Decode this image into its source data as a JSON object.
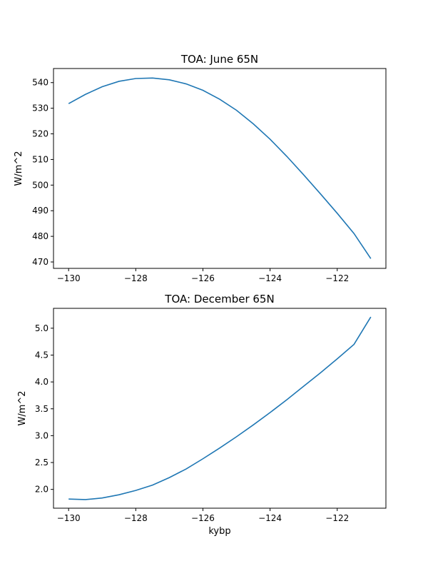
{
  "chart_data": [
    {
      "type": "line",
      "title": "TOA: June 65N",
      "xlabel": "",
      "ylabel": "W/m^2",
      "xlim": [
        -130.45,
        -120.55
      ],
      "ylim": [
        467.5,
        545.5
      ],
      "xticks": [
        -130,
        -128,
        -126,
        -124,
        -122
      ],
      "xtick_labels": [
        "−130",
        "−128",
        "−126",
        "−124",
        "−122"
      ],
      "yticks": [
        470,
        480,
        490,
        500,
        510,
        520,
        530,
        540
      ],
      "ytick_labels": [
        "470",
        "480",
        "490",
        "500",
        "510",
        "520",
        "530",
        "540"
      ],
      "grid": false,
      "series": [
        {
          "color": "#1f77b4",
          "x": [
            -130,
            -129.5,
            -129,
            -128.5,
            -128,
            -127.5,
            -127,
            -126.5,
            -126,
            -125.5,
            -125,
            -124.5,
            -124,
            -123.5,
            -123,
            -122.5,
            -122,
            -121.5,
            -121
          ],
          "y": [
            531.8,
            535.4,
            538.4,
            540.5,
            541.6,
            541.8,
            541.1,
            539.5,
            537.0,
            533.5,
            529.2,
            523.9,
            517.9,
            511.2,
            504.0,
            496.6,
            489.0,
            481.1,
            471.3
          ]
        }
      ]
    },
    {
      "type": "line",
      "title": "TOA: December 65N",
      "xlabel": "kybp",
      "ylabel": "W/m^2",
      "xlim": [
        -130.45,
        -120.55
      ],
      "ylim": [
        1.65,
        5.37
      ],
      "xticks": [
        -130,
        -128,
        -126,
        -124,
        -122
      ],
      "xtick_labels": [
        "−130",
        "−128",
        "−126",
        "−124",
        "−122"
      ],
      "yticks": [
        2.0,
        2.5,
        3.0,
        3.5,
        4.0,
        4.5,
        5.0
      ],
      "ytick_labels": [
        "2.0",
        "2.5",
        "3.0",
        "3.5",
        "4.0",
        "4.5",
        "5.0"
      ],
      "grid": false,
      "series": [
        {
          "color": "#1f77b4",
          "x": [
            -130,
            -129.5,
            -129,
            -128.5,
            -128,
            -127.5,
            -127,
            -126.5,
            -126,
            -125.5,
            -125,
            -124.5,
            -124,
            -123.5,
            -123,
            -122.5,
            -122,
            -121.5,
            -121
          ],
          "y": [
            1.82,
            1.81,
            1.84,
            1.9,
            1.98,
            2.08,
            2.22,
            2.38,
            2.57,
            2.77,
            2.98,
            3.2,
            3.43,
            3.67,
            3.92,
            4.17,
            4.43,
            4.7,
            5.21
          ]
        }
      ]
    }
  ]
}
